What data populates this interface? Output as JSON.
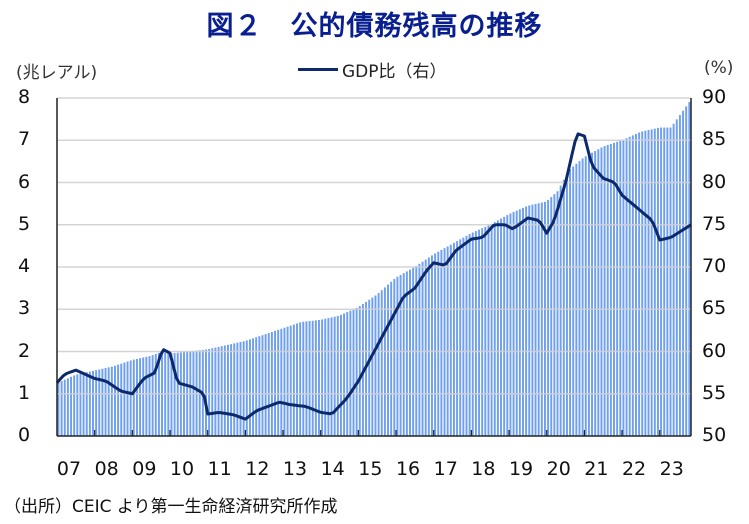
{
  "title": "図２　公的債務残高の推移",
  "left_unit": "(兆レアル)",
  "right_unit": "(%)",
  "legend": {
    "label": "GDP比（右）",
    "color": "#0c2a6b"
  },
  "source": "（出所）CEIC より第一生命経済研究所作成",
  "colors": {
    "bar": "#6f9ff0",
    "line": "#0c2a6b",
    "grid": "#d0d0d0",
    "axis": "#222222",
    "title": "#0a1f8f"
  },
  "chart_data": {
    "type": "bar+line",
    "title": "図２　公的債務残高の推移",
    "xlabel": "",
    "ylabel_left": "兆レアル",
    "ylabel_right": "%",
    "x_tick_labels": [
      "07",
      "08",
      "09",
      "10",
      "11",
      "12",
      "13",
      "14",
      "15",
      "16",
      "17",
      "18",
      "19",
      "20",
      "21",
      "22",
      "23"
    ],
    "left_ticks": [
      "0",
      "1",
      "2",
      "3",
      "4",
      "5",
      "6",
      "7",
      "8"
    ],
    "right_ticks": [
      "50",
      "55",
      "60",
      "65",
      "70",
      "75",
      "80",
      "85",
      "90"
    ],
    "ylim_left": [
      0,
      8
    ],
    "ylim_right": [
      50,
      90
    ],
    "x_range": [
      2007.0,
      2023.83
    ],
    "frequency": "monthly",
    "grid": true,
    "legend_position": "top-center",
    "series": [
      {
        "name": "公的債務残高（左, 兆レアル）",
        "kind": "bar",
        "anchors": [
          [
            2007.0,
            1.25
          ],
          [
            2007.5,
            1.45
          ],
          [
            2008.0,
            1.55
          ],
          [
            2008.5,
            1.65
          ],
          [
            2009.0,
            1.8
          ],
          [
            2009.5,
            1.9
          ],
          [
            2009.8,
            2.0
          ],
          [
            2010.0,
            1.95
          ],
          [
            2010.5,
            2.0
          ],
          [
            2011.0,
            2.05
          ],
          [
            2011.5,
            2.15
          ],
          [
            2012.0,
            2.25
          ],
          [
            2012.5,
            2.4
          ],
          [
            2013.0,
            2.55
          ],
          [
            2013.5,
            2.7
          ],
          [
            2014.0,
            2.75
          ],
          [
            2014.5,
            2.85
          ],
          [
            2015.0,
            3.05
          ],
          [
            2015.5,
            3.35
          ],
          [
            2016.0,
            3.75
          ],
          [
            2016.5,
            4.0
          ],
          [
            2017.0,
            4.3
          ],
          [
            2017.5,
            4.55
          ],
          [
            2018.0,
            4.8
          ],
          [
            2018.5,
            5.0
          ],
          [
            2019.0,
            5.25
          ],
          [
            2019.5,
            5.45
          ],
          [
            2020.0,
            5.55
          ],
          [
            2020.3,
            5.8
          ],
          [
            2020.6,
            6.3
          ],
          [
            2021.0,
            6.6
          ],
          [
            2021.5,
            6.85
          ],
          [
            2022.0,
            7.0
          ],
          [
            2022.5,
            7.2
          ],
          [
            2023.0,
            7.3
          ],
          [
            2023.3,
            7.3
          ],
          [
            2023.83,
            7.95
          ]
        ]
      },
      {
        "name": "GDP比（右）",
        "kind": "line",
        "anchors": [
          [
            2007.0,
            56.3
          ],
          [
            2007.2,
            57.3
          ],
          [
            2007.5,
            57.8
          ],
          [
            2008.0,
            56.8
          ],
          [
            2008.3,
            56.5
          ],
          [
            2008.7,
            55.3
          ],
          [
            2009.0,
            55.0
          ],
          [
            2009.3,
            56.8
          ],
          [
            2009.6,
            57.5
          ],
          [
            2009.8,
            60.3
          ],
          [
            2010.0,
            59.8
          ],
          [
            2010.2,
            56.3
          ],
          [
            2010.6,
            55.8
          ],
          [
            2010.9,
            55.0
          ],
          [
            2011.0,
            52.6
          ],
          [
            2011.3,
            52.8
          ],
          [
            2011.7,
            52.5
          ],
          [
            2012.0,
            52.0
          ],
          [
            2012.3,
            53.0
          ],
          [
            2012.6,
            53.5
          ],
          [
            2012.9,
            54.0
          ],
          [
            2013.2,
            53.7
          ],
          [
            2013.6,
            53.5
          ],
          [
            2014.0,
            52.8
          ],
          [
            2014.3,
            52.6
          ],
          [
            2014.7,
            54.5
          ],
          [
            2015.0,
            56.5
          ],
          [
            2015.3,
            59.0
          ],
          [
            2015.6,
            61.5
          ],
          [
            2015.9,
            64.0
          ],
          [
            2016.2,
            66.5
          ],
          [
            2016.5,
            67.5
          ],
          [
            2016.8,
            69.5
          ],
          [
            2017.0,
            70.5
          ],
          [
            2017.3,
            70.2
          ],
          [
            2017.6,
            72.0
          ],
          [
            2018.0,
            73.3
          ],
          [
            2018.3,
            73.5
          ],
          [
            2018.6,
            75.0
          ],
          [
            2018.9,
            75.0
          ],
          [
            2019.1,
            74.5
          ],
          [
            2019.5,
            75.8
          ],
          [
            2019.8,
            75.5
          ],
          [
            2020.0,
            74.0
          ],
          [
            2020.2,
            75.5
          ],
          [
            2020.5,
            80.0
          ],
          [
            2020.8,
            85.8
          ],
          [
            2021.0,
            85.5
          ],
          [
            2021.2,
            82.0
          ],
          [
            2021.5,
            80.5
          ],
          [
            2021.8,
            80.0
          ],
          [
            2022.0,
            78.5
          ],
          [
            2022.4,
            77.0
          ],
          [
            2022.8,
            75.5
          ],
          [
            2023.0,
            73.2
          ],
          [
            2023.3,
            73.5
          ],
          [
            2023.83,
            75.0
          ]
        ]
      }
    ]
  }
}
